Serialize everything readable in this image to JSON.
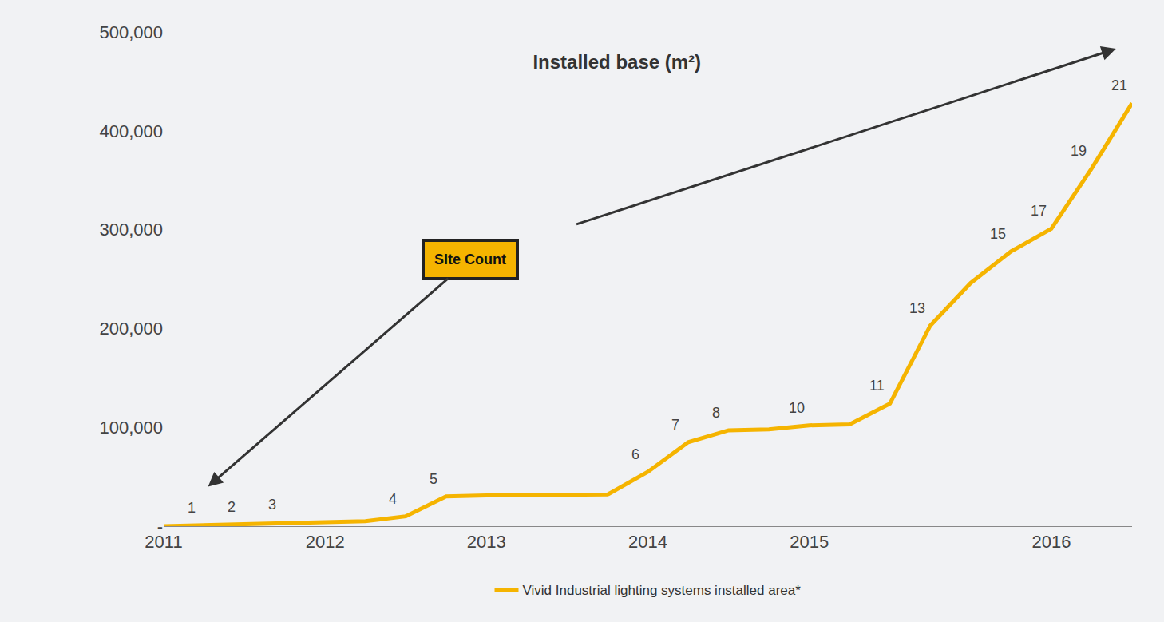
{
  "chart_data": {
    "type": "line",
    "title": "Installed base (m²)",
    "categories": [
      "2011",
      null,
      null,
      null,
      "2012",
      null,
      null,
      null,
      "2013",
      null,
      null,
      null,
      "2014",
      null,
      null,
      null,
      "2015",
      null,
      null,
      null,
      null,
      null,
      "2016",
      null,
      null
    ],
    "series": [
      {
        "name": "Vivid Industrial lighting systems installed area*",
        "color": "#f5b400",
        "values": [
          0,
          1000,
          2000,
          4000,
          5000,
          5000,
          10000,
          30000,
          31000,
          31000,
          31000,
          32000,
          55000,
          85000,
          97000,
          98000,
          102000,
          103000,
          124000,
          203000,
          246000,
          278000,
          301000,
          362000,
          428000
        ]
      }
    ],
    "site_counts": [
      null,
      1,
      2,
      3,
      null,
      null,
      4,
      5,
      null,
      null,
      null,
      null,
      6,
      7,
      8,
      null,
      10,
      null,
      11,
      13,
      null,
      15,
      17,
      19,
      21
    ],
    "annotations": [
      "Site Count"
    ],
    "ylim": [
      0,
      500000
    ],
    "yticks": [
      {
        "value": 0,
        "label": "-"
      },
      {
        "value": 100000,
        "label": "100,000"
      },
      {
        "value": 200000,
        "label": "200,000"
      },
      {
        "value": 300000,
        "label": "300,000"
      },
      {
        "value": 400000,
        "label": "400,000"
      },
      {
        "value": 500000,
        "label": "500,000"
      }
    ],
    "grid": false,
    "legend": "bottom"
  }
}
